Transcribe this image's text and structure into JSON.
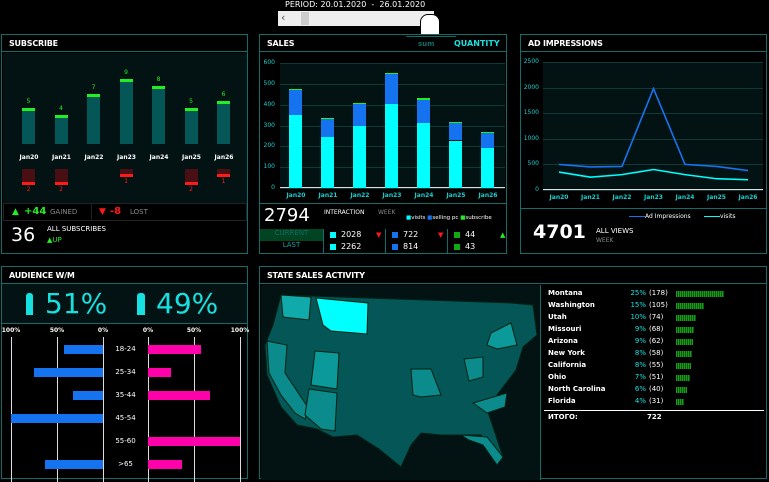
{
  "period": {
    "label": "PERIOD:",
    "from": "20.01.2020",
    "sep": "-",
    "to": "26.01.2020"
  },
  "colors": {
    "border": "#0f6d6a",
    "cyan": "#00ffff",
    "blue": "#1673f0",
    "green": "#22ee22",
    "teal": "#055757",
    "red": "#ff1a1a",
    "pink": "#ff00aa"
  },
  "subscribe": {
    "title": "SUBSCRIBE",
    "chart_data": {
      "type": "bar",
      "categories": [
        "Jan20",
        "Jan21",
        "Jan22",
        "Jan23",
        "Jan24",
        "Jan25",
        "Jan26"
      ],
      "gained": [
        5,
        4,
        7,
        9,
        8,
        5,
        6
      ],
      "lost": [
        2,
        2,
        0,
        1,
        0,
        2,
        1
      ]
    },
    "gained_value": "+44",
    "gained_label": "GAINED",
    "lost_value": "-8",
    "lost_label": "LOST",
    "total": "36",
    "total_label": "ALL SUBSCRIBES",
    "trend": "UP"
  },
  "sales": {
    "title": "SALES",
    "tab_sum": "sum",
    "tab_quantity": "QUANTITY",
    "chart_data": {
      "type": "bar",
      "stacked": true,
      "categories": [
        "Jan20",
        "Jan21",
        "Jan22",
        "Jan23",
        "Jan24",
        "Jan25",
        "Jan26"
      ],
      "ylim": [
        0,
        600
      ],
      "yticks": [
        "0",
        "100",
        "200",
        "300",
        "400",
        "500",
        "600"
      ],
      "series": [
        {
          "name": "visits",
          "color": "#00ffff",
          "values": [
            349,
            244,
            299,
            405,
            310,
            228,
            193
          ]
        },
        {
          "name": "selling pc",
          "color": "#1673f0",
          "values": [
            122,
            86,
            104,
            140,
            112,
            86,
            72
          ]
        },
        {
          "name": "subscribe",
          "color": "#22ee22",
          "values": [
            5,
            4,
            7,
            9,
            8,
            5,
            6
          ]
        }
      ]
    },
    "total": "2794",
    "interaction": "INTERACTION",
    "week": "WEEK",
    "rows": [
      {
        "label": "CURRENT",
        "visits": "2028",
        "selling": "722",
        "subscribe": "44"
      },
      {
        "label": "LAST",
        "visits": "2262",
        "selling": "814",
        "subscribe": "43"
      }
    ]
  },
  "ads": {
    "title": "AD IMPRESSIONS",
    "chart_data": {
      "type": "line",
      "categories": [
        "Jan20",
        "Jan21",
        "Jan22",
        "Jan23",
        "Jan24",
        "Jan25",
        "Jan26"
      ],
      "ylim": [
        0,
        2500
      ],
      "yticks": [
        "0",
        "500",
        "1000",
        "1500",
        "2000",
        "2500"
      ],
      "series": [
        {
          "name": "Ad Impressions",
          "color": "#1673f0",
          "values": [
            500,
            450,
            460,
            1980,
            500,
            460,
            380
          ]
        },
        {
          "name": "visits",
          "color": "#00ffff",
          "values": [
            350,
            250,
            300,
            400,
            300,
            220,
            200
          ]
        }
      ]
    },
    "total": "4701",
    "total_label": "ALL VIEWS",
    "week": "WEEK"
  },
  "audience": {
    "title": "AUDIENCE W/M",
    "men_pct": "51%",
    "women_pct": "49%",
    "ticks_left": [
      "100%",
      "50%",
      "0%"
    ],
    "ticks_right": [
      "0%",
      "50%",
      "100%"
    ],
    "chart_data": {
      "type": "bar",
      "categories": [
        "18-24",
        "25-34",
        "35-44",
        "45-54",
        "55-60",
        ">65"
      ],
      "men": [
        42,
        75,
        33,
        100,
        0,
        63
      ],
      "women": [
        58,
        25,
        67,
        0,
        100,
        37
      ]
    }
  },
  "states": {
    "title": "STATE SALES ACTIVITY",
    "list": [
      {
        "name": "Montana",
        "pct": "25%",
        "count": "(178)",
        "v": 178
      },
      {
        "name": "Washington",
        "pct": "15%",
        "count": "(105)",
        "v": 105
      },
      {
        "name": "Utah",
        "pct": "10%",
        "count": "(74)",
        "v": 74
      },
      {
        "name": "Missouri",
        "pct": "9%",
        "count": "(68)",
        "v": 68
      },
      {
        "name": "Arizona",
        "pct": "9%",
        "count": "(62)",
        "v": 62
      },
      {
        "name": "New York",
        "pct": "8%",
        "count": "(58)",
        "v": 58
      },
      {
        "name": "California",
        "pct": "8%",
        "count": "(55)",
        "v": 55
      },
      {
        "name": "Ohio",
        "pct": "7%",
        "count": "(51)",
        "v": 51
      },
      {
        "name": "North Carolina",
        "pct": "6%",
        "count": "(40)",
        "v": 40
      },
      {
        "name": "Florida",
        "pct": "4%",
        "count": "(31)",
        "v": 31
      }
    ],
    "total_label": "ИТОГО:",
    "total": "722"
  }
}
